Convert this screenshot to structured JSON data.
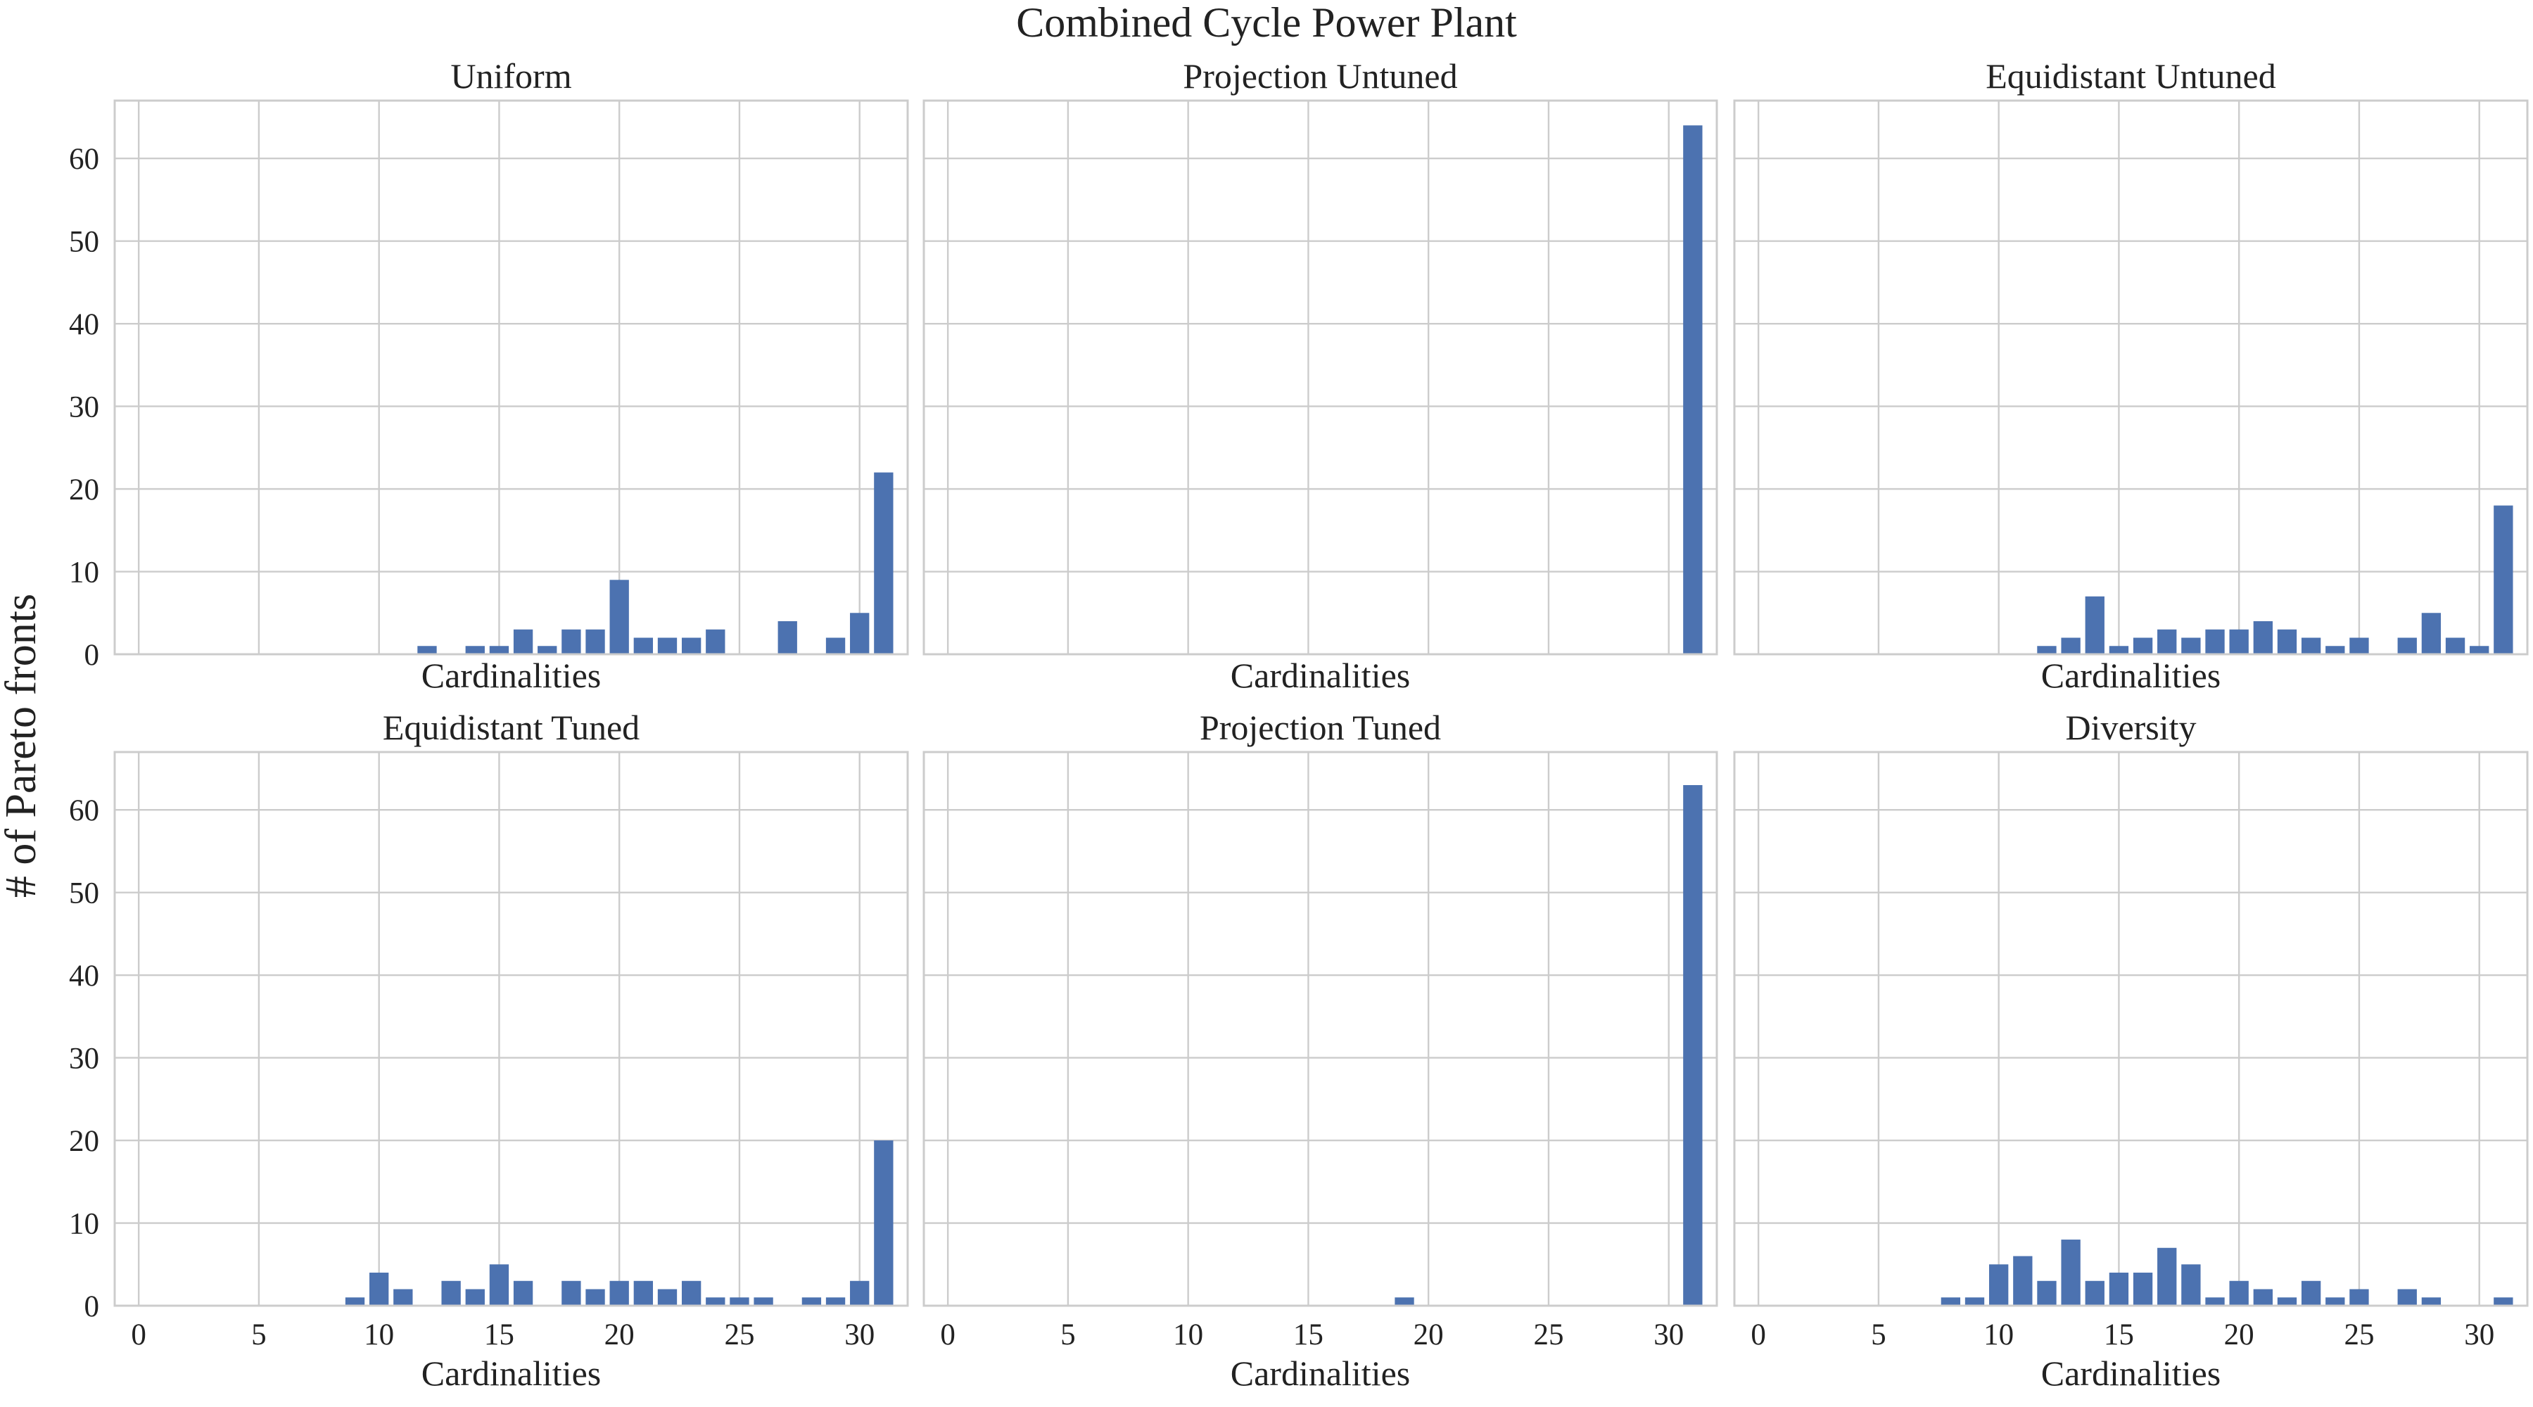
{
  "figure": {
    "title": "Combined Cycle Power Plant",
    "ylabel": "# of Pareto fronts"
  },
  "colors": {
    "bar": "#4c72b0",
    "grid": "#cccccc",
    "text": "#222222"
  },
  "chart_data": [
    {
      "type": "bar",
      "title": "Uniform",
      "xlabel": "Cardinalities",
      "ylabel": "",
      "xlim": [
        -1,
        32
      ],
      "ylim": [
        0,
        67
      ],
      "xticks": [
        0,
        5,
        10,
        15,
        20,
        25,
        30
      ],
      "yticks": [
        0,
        10,
        20,
        30,
        40,
        50,
        60
      ],
      "show_xticklabels": false,
      "show_yticklabels": true,
      "grid": true,
      "x": [
        12,
        14,
        15,
        16,
        17,
        18,
        19,
        20,
        21,
        22,
        23,
        24,
        27,
        29,
        30,
        31
      ],
      "values": [
        1,
        1,
        1,
        3,
        1,
        3,
        3,
        9,
        2,
        2,
        2,
        3,
        4,
        2,
        5,
        22
      ]
    },
    {
      "type": "bar",
      "title": "Projection Untuned",
      "xlabel": "Cardinalities",
      "ylabel": "",
      "xlim": [
        -1,
        32
      ],
      "ylim": [
        0,
        67
      ],
      "xticks": [
        0,
        5,
        10,
        15,
        20,
        25,
        30
      ],
      "yticks": [
        0,
        10,
        20,
        30,
        40,
        50,
        60
      ],
      "show_xticklabels": false,
      "show_yticklabels": false,
      "grid": true,
      "x": [
        31
      ],
      "values": [
        64
      ]
    },
    {
      "type": "bar",
      "title": "Equidistant Untuned",
      "xlabel": "Cardinalities",
      "ylabel": "",
      "xlim": [
        -1,
        32
      ],
      "ylim": [
        0,
        67
      ],
      "xticks": [
        0,
        5,
        10,
        15,
        20,
        25,
        30
      ],
      "yticks": [
        0,
        10,
        20,
        30,
        40,
        50,
        60
      ],
      "show_xticklabels": false,
      "show_yticklabels": false,
      "grid": true,
      "x": [
        12,
        13,
        14,
        15,
        16,
        17,
        18,
        19,
        20,
        21,
        22,
        23,
        24,
        25,
        27,
        28,
        29,
        30,
        31
      ],
      "values": [
        1,
        2,
        7,
        1,
        2,
        3,
        2,
        3,
        3,
        4,
        3,
        2,
        1,
        2,
        2,
        5,
        2,
        1,
        18
      ]
    },
    {
      "type": "bar",
      "title": "Equidistant Tuned",
      "xlabel": "Cardinalities",
      "ylabel": "",
      "xlim": [
        -1,
        32
      ],
      "ylim": [
        0,
        67
      ],
      "xticks": [
        0,
        5,
        10,
        15,
        20,
        25,
        30
      ],
      "yticks": [
        0,
        10,
        20,
        30,
        40,
        50,
        60
      ],
      "show_xticklabels": true,
      "show_yticklabels": true,
      "grid": true,
      "x": [
        9,
        10,
        11,
        13,
        14,
        15,
        16,
        18,
        19,
        20,
        21,
        22,
        23,
        24,
        25,
        26,
        28,
        29,
        30,
        31
      ],
      "values": [
        1,
        4,
        2,
        3,
        2,
        5,
        3,
        3,
        2,
        3,
        3,
        2,
        3,
        1,
        1,
        1,
        1,
        1,
        3,
        20
      ]
    },
    {
      "type": "bar",
      "title": "Projection Tuned",
      "xlabel": "Cardinalities",
      "ylabel": "",
      "xlim": [
        -1,
        32
      ],
      "ylim": [
        0,
        67
      ],
      "xticks": [
        0,
        5,
        10,
        15,
        20,
        25,
        30
      ],
      "yticks": [
        0,
        10,
        20,
        30,
        40,
        50,
        60
      ],
      "show_xticklabels": true,
      "show_yticklabels": false,
      "grid": true,
      "x": [
        19,
        31
      ],
      "values": [
        1,
        63
      ]
    },
    {
      "type": "bar",
      "title": "Diversity",
      "xlabel": "Cardinalities",
      "ylabel": "",
      "xlim": [
        -1,
        32
      ],
      "ylim": [
        0,
        67
      ],
      "xticks": [
        0,
        5,
        10,
        15,
        20,
        25,
        30
      ],
      "yticks": [
        0,
        10,
        20,
        30,
        40,
        50,
        60
      ],
      "show_xticklabels": true,
      "show_yticklabels": false,
      "grid": true,
      "x": [
        8,
        9,
        10,
        11,
        12,
        13,
        14,
        15,
        16,
        17,
        18,
        19,
        20,
        21,
        22,
        23,
        24,
        25,
        27,
        28,
        31
      ],
      "values": [
        1,
        1,
        5,
        6,
        3,
        8,
        3,
        4,
        4,
        7,
        5,
        1,
        3,
        2,
        1,
        3,
        1,
        2,
        2,
        1,
        1
      ]
    }
  ]
}
